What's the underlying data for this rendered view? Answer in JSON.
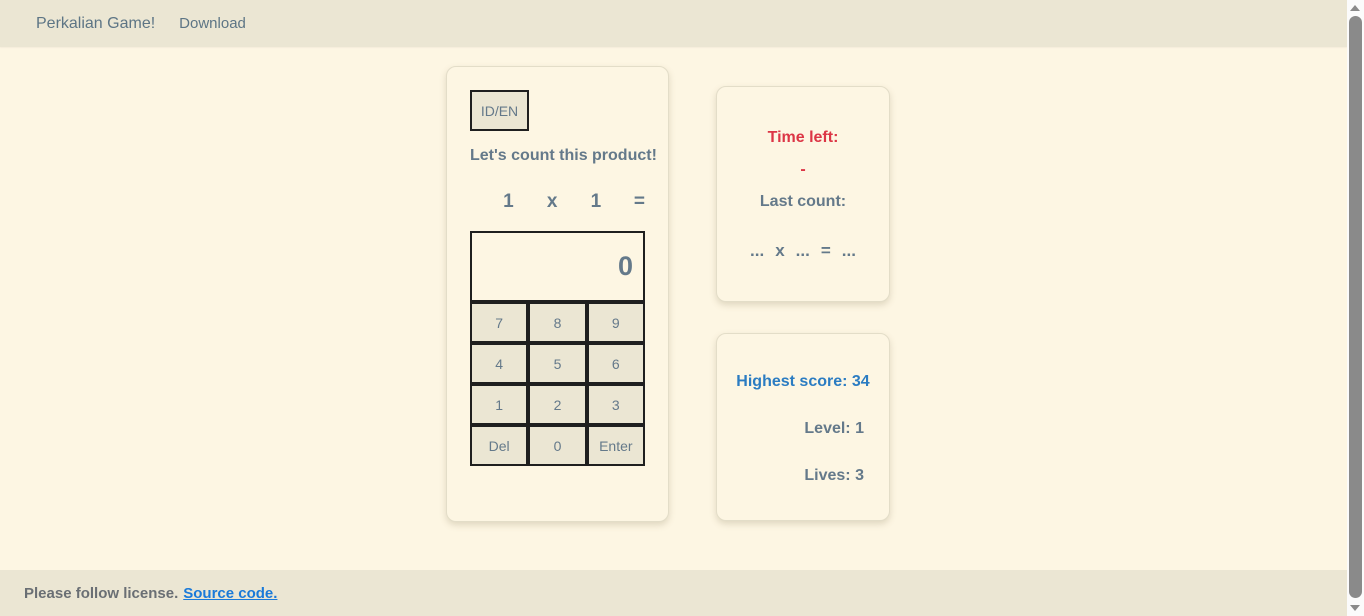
{
  "navbar": {
    "brand": "Perkalian Game!",
    "download_label": "Download"
  },
  "game": {
    "lang_toggle_label": "ID/EN",
    "prompt": "Let's count this product!",
    "equation_tokens": [
      "1",
      "x",
      "1",
      "="
    ],
    "display_value": "0",
    "numpad": {
      "rows": [
        [
          "7",
          "8",
          "9"
        ],
        [
          "4",
          "5",
          "6"
        ],
        [
          "1",
          "2",
          "3"
        ],
        [
          "Del",
          "0",
          "Enter"
        ]
      ]
    }
  },
  "status": {
    "time_left_label": "Time left:",
    "time_left_value": "-",
    "last_count_label": "Last count:",
    "last_count_tokens": [
      "...",
      "x",
      "...",
      "=",
      "..."
    ]
  },
  "score": {
    "highest_label": "Highest score:",
    "highest_value": "34",
    "level_label": "Level:",
    "level_value": "1",
    "lives_label": "Lives:",
    "lives_value": "3"
  },
  "footer": {
    "license_text": "Please follow license.",
    "source_link_label": "Source code."
  },
  "colors": {
    "page_bg": "#fdf6e3",
    "bar_bg": "#ebe6d3",
    "text_slate": "#64798a",
    "danger_red": "#dc3545",
    "score_blue": "#2b7cc2",
    "link_blue": "#1a7ad9",
    "button_border": "#1f1f1f"
  }
}
